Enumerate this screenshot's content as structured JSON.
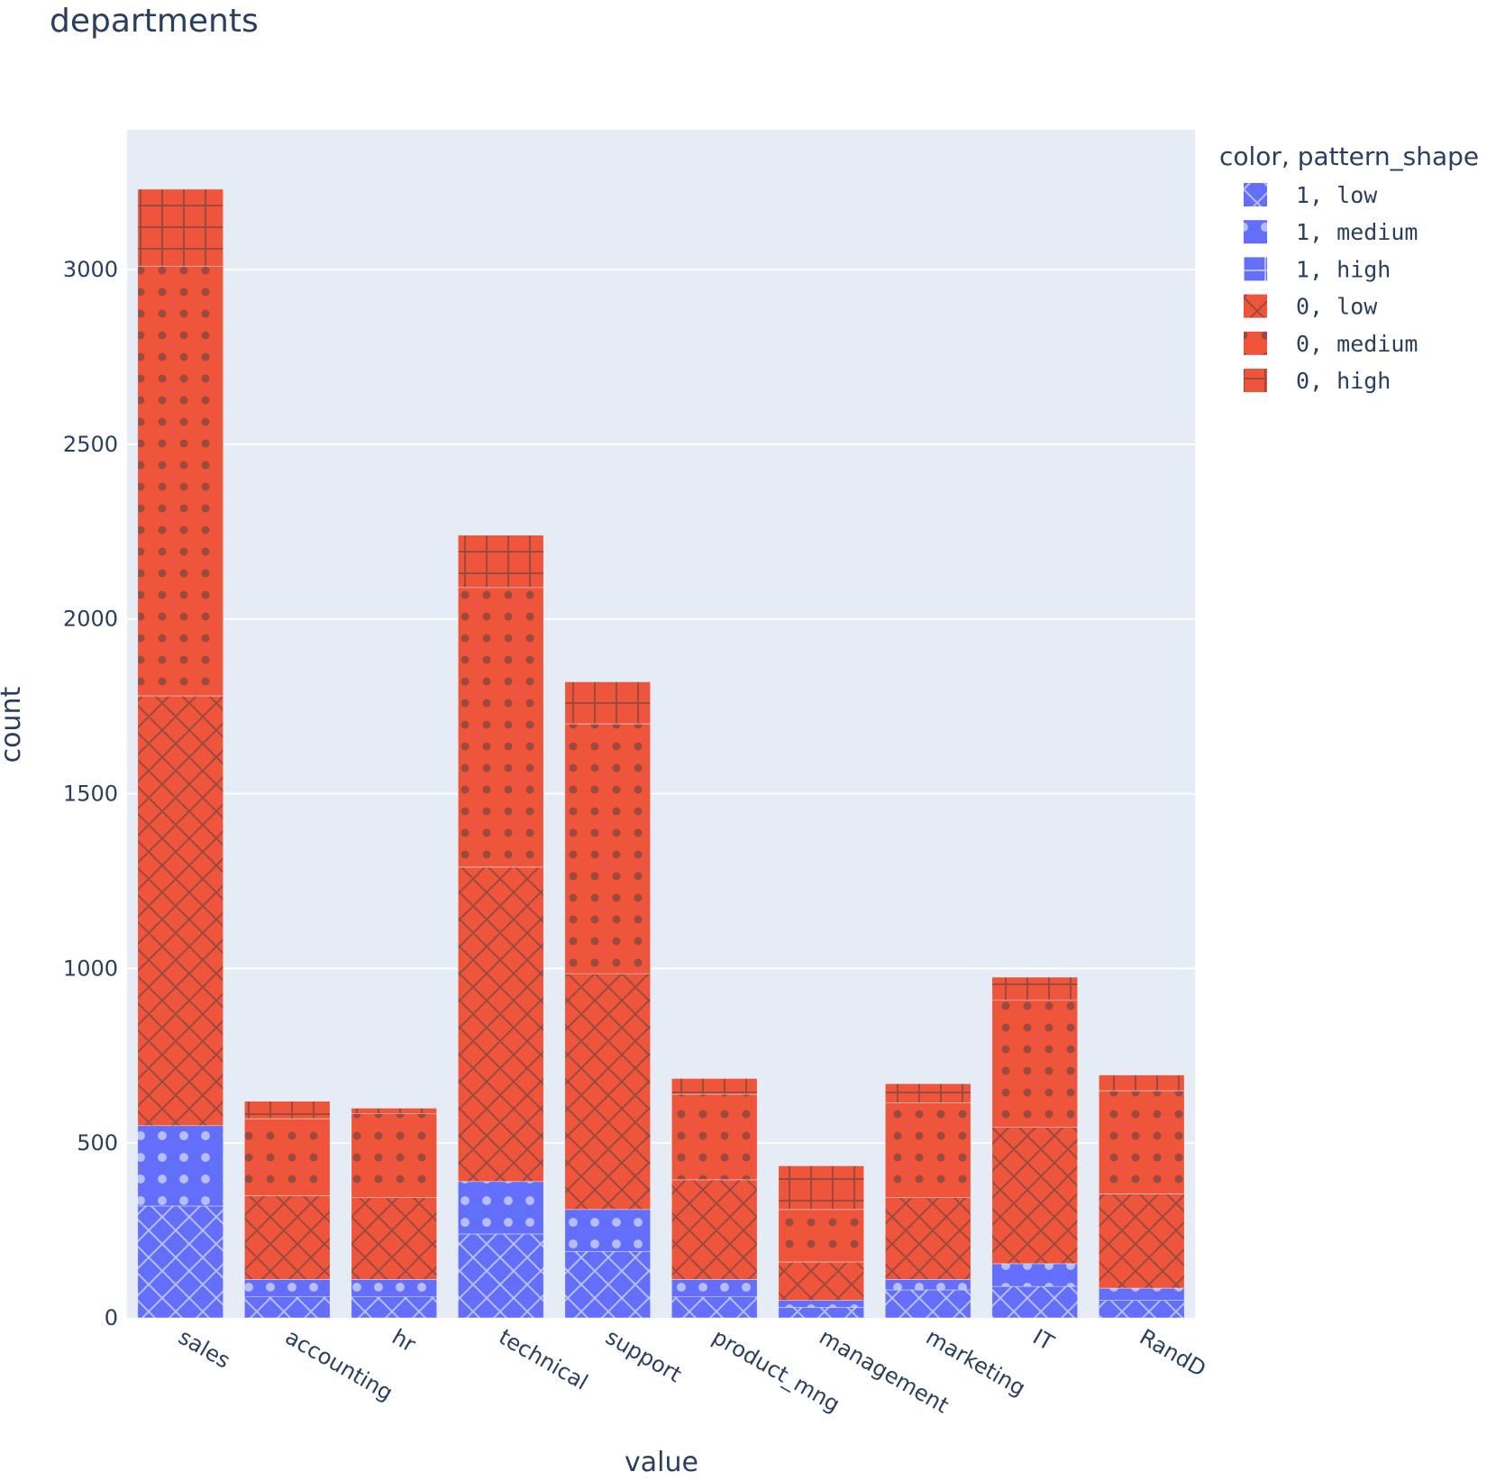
{
  "chart_data": {
    "type": "bar",
    "barmode": "stack",
    "title": "departments",
    "xlabel": "value",
    "ylabel": "count",
    "ylim": [
      0,
      3400
    ],
    "yticks": [
      0,
      500,
      1000,
      1500,
      2000,
      2500,
      3000
    ],
    "grid": true,
    "legend": {
      "title": "color, pattern_shape",
      "placement": "right"
    },
    "categories": [
      "sales",
      "accounting",
      "hr",
      "technical",
      "support",
      "product_mng",
      "management",
      "marketing",
      "IT",
      "RandD"
    ],
    "series": [
      {
        "name": "1, low",
        "color": "#636efa",
        "pattern": "x",
        "values": [
          320,
          60,
          60,
          240,
          190,
          60,
          30,
          80,
          90,
          50
        ]
      },
      {
        "name": "1, medium",
        "color": "#636efa",
        "pattern": ".",
        "values": [
          230,
          50,
          50,
          150,
          120,
          50,
          20,
          30,
          65,
          35
        ]
      },
      {
        "name": "1, high",
        "color": "#636efa",
        "pattern": "+",
        "values": [
          0,
          0,
          0,
          0,
          0,
          0,
          0,
          0,
          0,
          0
        ]
      },
      {
        "name": "0, low",
        "color": "#ef553b",
        "pattern": "x",
        "values": [
          1230,
          240,
          235,
          900,
          675,
          285,
          110,
          235,
          390,
          270
        ]
      },
      {
        "name": "0, medium",
        "color": "#ef553b",
        "pattern": ".",
        "values": [
          1230,
          220,
          240,
          800,
          715,
          245,
          150,
          270,
          365,
          295
        ]
      },
      {
        "name": "0, high",
        "color": "#ef553b",
        "pattern": "+",
        "values": [
          220,
          50,
          15,
          150,
          120,
          45,
          125,
          55,
          65,
          45
        ]
      }
    ]
  }
}
